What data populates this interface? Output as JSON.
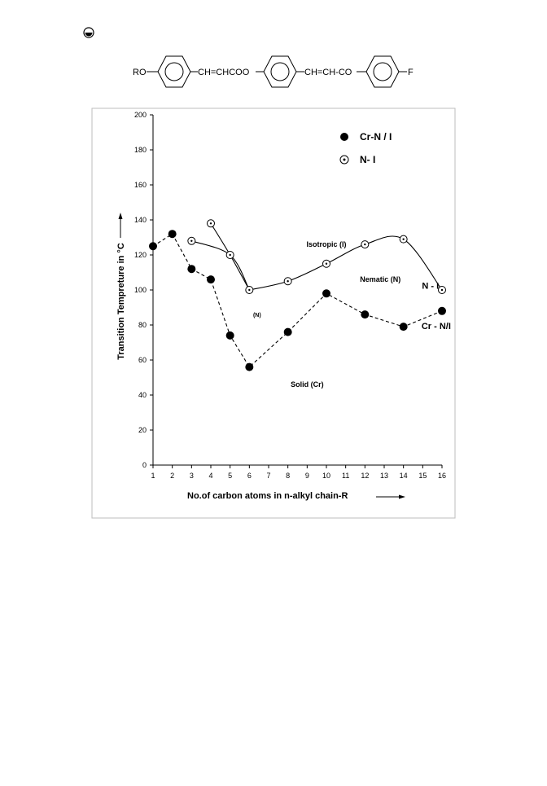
{
  "page": {
    "corner_icon": "bullet-circle-icon"
  },
  "structure": {
    "parts": [
      "RO",
      "CH=CHCOO",
      "CH=CH-CO",
      "F"
    ],
    "ring_icon": "benzene-ring-icon"
  },
  "chart_data": {
    "type": "scatter",
    "xlabel": "No.of carbon atoms in n-alkyl chain-R",
    "ylabel": "Transition Tempreture in °C",
    "xlim": [
      1,
      16
    ],
    "ylim": [
      0,
      200
    ],
    "x_ticks": [
      1,
      2,
      3,
      4,
      5,
      6,
      7,
      8,
      9,
      10,
      11,
      12,
      13,
      14,
      15,
      16
    ],
    "y_ticks": [
      0,
      20,
      40,
      60,
      80,
      100,
      120,
      140,
      160,
      180,
      200
    ],
    "grid": false,
    "legend_position": "top-right",
    "series": [
      {
        "name": "Cr-N / I",
        "marker": "filled-circle",
        "line": "dashed",
        "color": "#000000",
        "x": [
          1,
          2,
          3,
          4,
          5,
          6,
          8,
          10,
          12,
          14,
          16
        ],
        "y": [
          125,
          132,
          112,
          106,
          74,
          56,
          76,
          98,
          86,
          79,
          88
        ]
      },
      {
        "name": "N- I",
        "marker": "dotted-circle",
        "line": "solid-smooth",
        "color": "#000000",
        "x": [
          3,
          4,
          5,
          6,
          8,
          10,
          12,
          14,
          16
        ],
        "y": [
          128,
          138,
          120,
          100,
          105,
          115,
          126,
          129,
          100
        ]
      }
    ],
    "annotations": [
      {
        "text": "Isotropic (I)",
        "x": 10.0,
        "y": 126,
        "bold": true
      },
      {
        "text": "Nematic (N)",
        "x": 12.8,
        "y": 106,
        "bold": true
      },
      {
        "text": "(N)",
        "x": 6.4,
        "y": 86,
        "bold": true
      },
      {
        "text": "Solid (Cr)",
        "x": 9.0,
        "y": 46,
        "bold": true
      },
      {
        "text": "N - I",
        "x": 15.4,
        "y": 102,
        "bold": true
      },
      {
        "text": "Cr - N/I",
        "x": 15.7,
        "y": 79,
        "bold": true
      }
    ]
  }
}
